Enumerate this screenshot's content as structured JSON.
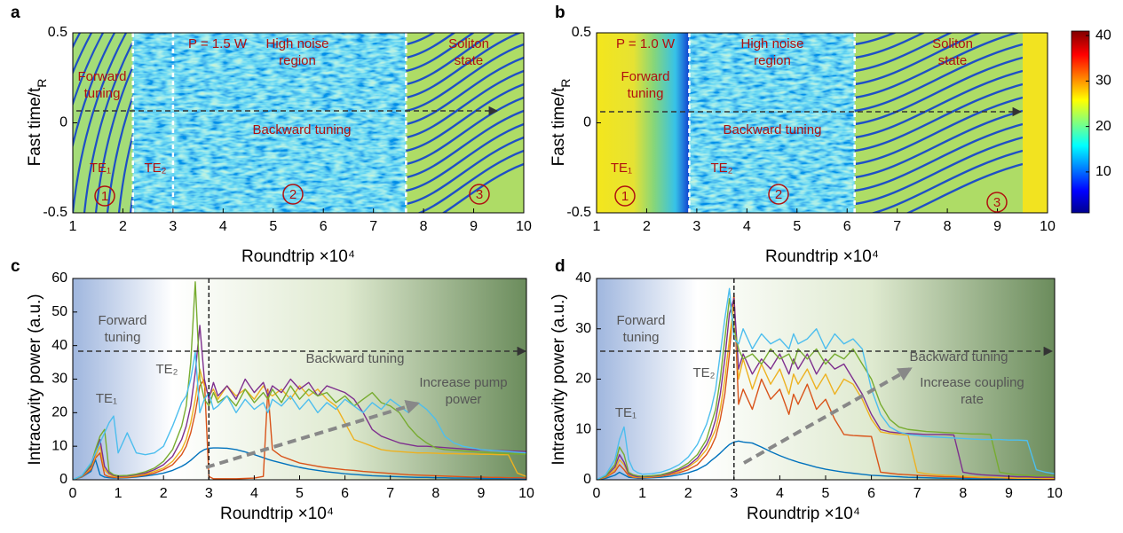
{
  "chart_data": [
    {
      "type": "heatmap",
      "panel": "a",
      "xlabel": "Roundtrip ×10⁴",
      "ylabel": "Fast time/t",
      "ylabel_sub": "R",
      "xlim": [
        1,
        10
      ],
      "xticks": [
        1,
        2,
        3,
        4,
        5,
        6,
        7,
        8,
        9,
        10
      ],
      "ylim": [
        -0.5,
        0.5
      ],
      "yticks": [
        -0.5,
        0,
        0.5
      ],
      "vlines": [
        2.2,
        3,
        7.65
      ],
      "annotations": [
        [
          "P = 1.5 W"
        ],
        [
          "High noise",
          "region"
        ],
        [
          "Forward",
          "tuning"
        ],
        [
          "Backward tuning"
        ],
        [
          "Soliton",
          "state"
        ],
        [
          "TE₁"
        ],
        [
          "TE₂"
        ]
      ],
      "region_labels": [
        "1",
        "2",
        "3"
      ]
    },
    {
      "type": "heatmap",
      "panel": "b",
      "xlabel": "Roundtrip ×10⁴",
      "ylabel": "Fast time/t",
      "ylabel_sub": "R",
      "xlim": [
        1,
        10
      ],
      "xticks": [
        1,
        2,
        3,
        4,
        5,
        6,
        7,
        8,
        9,
        10
      ],
      "ylim": [
        -0.5,
        0.5
      ],
      "yticks": [
        -0.5,
        0,
        0.5
      ],
      "vlines": [
        2.85,
        6.15
      ],
      "annotations": [
        [
          "P = 1.0 W"
        ],
        [
          "High noise",
          "region"
        ],
        [
          "Forward",
          "tuning"
        ],
        [
          "Backward tuning"
        ],
        [
          "Soliton",
          "state"
        ],
        [
          "TE₁"
        ],
        [
          "TE₂"
        ]
      ],
      "region_labels": [
        "1",
        "2",
        "3"
      ],
      "colorbar": {
        "lim": [
          1,
          41
        ],
        "ticks": [
          10,
          20,
          30,
          40
        ]
      }
    },
    {
      "type": "line",
      "panel": "c",
      "xlabel": "Roundtrip ×10⁴",
      "ylabel": "Intracavity power  (a.u.)",
      "xlim": [
        0,
        10
      ],
      "xticks": [
        0,
        1,
        2,
        3,
        4,
        5,
        6,
        7,
        8,
        9,
        10
      ],
      "ylim": [
        0,
        60
      ],
      "yticks": [
        0,
        10,
        20,
        30,
        40,
        50,
        60
      ],
      "vlines": [
        3
      ],
      "annotations": [
        [
          "Forward",
          "tuning"
        ],
        [
          "Backward tuning"
        ],
        [
          "TE₁"
        ],
        [
          "TE₂"
        ],
        [
          "Increase pump",
          "power"
        ]
      ],
      "x": [
        0,
        0.2,
        0.4,
        0.5,
        0.6,
        0.7,
        0.8,
        0.9,
        1,
        1.2,
        1.4,
        1.6,
        1.8,
        2,
        2.2,
        2.4,
        2.5,
        2.6,
        2.7,
        2.8,
        2.9,
        3,
        3.1,
        3.2,
        3.4,
        3.6,
        3.8,
        4,
        4.2,
        4.3,
        4.4,
        4.6,
        4.8,
        5,
        5.2,
        5.4,
        5.6,
        5.8,
        6,
        6.2,
        6.4,
        6.6,
        6.8,
        7,
        7.2,
        7.4,
        7.6,
        7.8,
        8,
        8.2,
        8.4,
        8.6,
        8.8,
        9,
        9.2,
        9.4,
        9.6,
        9.8,
        10
      ],
      "series": [
        {
          "color": "#0072bd",
          "values": [
            0,
            0.8,
            2.5,
            6,
            1.5,
            0.8,
            0.6,
            0.5,
            0.5,
            0.6,
            0.8,
            1.1,
            1.5,
            2,
            2.8,
            4,
            4.8,
            5.8,
            7,
            8.2,
            9,
            9.4,
            9.5,
            9.5,
            9.4,
            9,
            8.3,
            7.5,
            6.6,
            6.1,
            5.7,
            5,
            4.3,
            3.7,
            3.2,
            2.8,
            2.4,
            2.1,
            1.8,
            1.6,
            1.4,
            1.2,
            1.1,
            1,
            0.9,
            0.8,
            0.7,
            0.7,
            0.6,
            0.6,
            0.5,
            0.5,
            0.5,
            0.4,
            0.4,
            0.4,
            0.4,
            0.3,
            0.3
          ]
        },
        {
          "color": "#d95319",
          "values": [
            0,
            0.9,
            3,
            6.5,
            8,
            1.5,
            0.9,
            0.7,
            0.6,
            0.7,
            1,
            1.4,
            2,
            3,
            4.5,
            7.5,
            10,
            14,
            20,
            28,
            30,
            1,
            0.3,
            0.3,
            0.3,
            0.3,
            0.4,
            0.5,
            1,
            27,
            9,
            7,
            6,
            5,
            4.5,
            4,
            3.6,
            3.3,
            3,
            2.8,
            2.5,
            2.3,
            2.1,
            1.9,
            1.7,
            1.5,
            1.4,
            1.3,
            1.2,
            1.1,
            1,
            0.9,
            0.8,
            0.8,
            0.7,
            0.7,
            0.6,
            0.6,
            0.5
          ]
        },
        {
          "color": "#edb120",
          "values": [
            0,
            1,
            3.5,
            7,
            10,
            3,
            1.5,
            1,
            0.8,
            0.9,
            1.2,
            1.7,
            2.5,
            3.5,
            5.5,
            9,
            12,
            17,
            24,
            33,
            28,
            25,
            27,
            24,
            28,
            25,
            27,
            24,
            28,
            26,
            25,
            27,
            24,
            28,
            25,
            27,
            24,
            22,
            17,
            12,
            11,
            10,
            9,
            8.6,
            8.4,
            8.2,
            8,
            8,
            7.9,
            7.8,
            7.8,
            7.7,
            7.7,
            7.6,
            7.6,
            7.5,
            7.5,
            2,
            1
          ]
        },
        {
          "color": "#7e2f8e",
          "values": [
            0,
            1.1,
            4,
            8,
            12,
            4,
            2,
            1.3,
            1,
            1.1,
            1.5,
            2,
            3,
            4.5,
            7,
            12,
            16,
            22,
            32,
            46,
            30,
            24,
            29,
            25,
            28,
            24,
            30,
            26,
            29,
            25,
            28,
            26,
            30,
            27,
            29,
            25,
            28,
            27,
            26,
            24,
            20,
            15,
            13,
            12,
            11,
            10.5,
            10,
            10,
            9.8,
            9.6,
            9.4,
            9.2,
            9,
            8.9,
            8.8,
            8.7,
            8.6,
            8.5,
            8.4
          ]
        },
        {
          "color": "#77ac30",
          "values": [
            0,
            1.2,
            4.5,
            9,
            13,
            15,
            2.5,
            1.5,
            1.2,
            1.3,
            1.7,
            2.4,
            3.5,
            5.5,
            9,
            16,
            22,
            35,
            59,
            30,
            24,
            22,
            26,
            23,
            25,
            22,
            27,
            23,
            26,
            24,
            27,
            23,
            28,
            24,
            27,
            25,
            26,
            23,
            25,
            22,
            24,
            26,
            23,
            22,
            20,
            16,
            13,
            11,
            9.5,
            9,
            8.8,
            8.6,
            8.4,
            8.2,
            8,
            7.9,
            7.8,
            7.7,
            7.6
          ]
        },
        {
          "color": "#4dbeee",
          "values": [
            0,
            1.3,
            5,
            8,
            11,
            14,
            17,
            19,
            8,
            14,
            8,
            7.5,
            8,
            10,
            16,
            23,
            25,
            30,
            38,
            20,
            24,
            26,
            21,
            22,
            25,
            20,
            24,
            21,
            23,
            20,
            24,
            22,
            25,
            21,
            24,
            20,
            23,
            21,
            24,
            22,
            20,
            23,
            21,
            24,
            22,
            20,
            23,
            21,
            18,
            13,
            11,
            10,
            9.5,
            9,
            8.8,
            8.6,
            8.4,
            8.2,
            8
          ]
        }
      ]
    },
    {
      "type": "line",
      "panel": "d",
      "xlabel": "Roundtrip ×10⁴",
      "ylabel": "Intracavity power  (a.u.)",
      "xlim": [
        0,
        10
      ],
      "xticks": [
        0,
        1,
        2,
        3,
        4,
        5,
        6,
        7,
        8,
        9,
        10
      ],
      "ylim": [
        0,
        40
      ],
      "yticks": [
        0,
        10,
        20,
        30,
        40
      ],
      "vlines": [
        3
      ],
      "annotations": [
        [
          "Forward",
          "tuning"
        ],
        [
          "Backward tuning"
        ],
        [
          "TE₁"
        ],
        [
          "TE₂"
        ],
        [
          "Increase coupling",
          "rate"
        ]
      ],
      "x": [
        0,
        0.2,
        0.4,
        0.5,
        0.6,
        0.7,
        0.8,
        0.9,
        1,
        1.2,
        1.4,
        1.6,
        1.8,
        2,
        2.2,
        2.4,
        2.5,
        2.6,
        2.7,
        2.8,
        2.9,
        3,
        3.1,
        3.2,
        3.4,
        3.6,
        3.8,
        4,
        4.2,
        4.3,
        4.4,
        4.6,
        4.8,
        5,
        5.2,
        5.4,
        5.6,
        5.8,
        6,
        6.2,
        6.4,
        6.6,
        6.8,
        7,
        7.2,
        7.4,
        7.6,
        7.8,
        8,
        8.2,
        8.4,
        8.6,
        8.8,
        9,
        9.2,
        9.4,
        9.6,
        9.8,
        10
      ],
      "series": [
        {
          "color": "#0072bd",
          "values": [
            0,
            0.3,
            0.9,
            1.5,
            1,
            0.5,
            0.4,
            0.3,
            0.3,
            0.4,
            0.5,
            0.7,
            1,
            1.4,
            2,
            3,
            3.8,
            4.5,
            5.3,
            6.2,
            7,
            7.5,
            7.7,
            7.5,
            7.3,
            6.5,
            5.6,
            4.8,
            4.1,
            3.8,
            3.5,
            3,
            2.5,
            2.1,
            1.8,
            1.5,
            1.3,
            1.1,
            0.9,
            0.8,
            0.7,
            0.6,
            0.5,
            0.45,
            0.4,
            0.35,
            0.3,
            0.3,
            0.25,
            0.2,
            0.2,
            0.2,
            0.15,
            0.15,
            0.1,
            0.1,
            0.1,
            0.1,
            0.1
          ]
        },
        {
          "color": "#d95319",
          "values": [
            0,
            0.5,
            1.6,
            3,
            2,
            0.8,
            0.5,
            0.4,
            0.4,
            0.5,
            0.7,
            1,
            1.4,
            2,
            3,
            5,
            6.5,
            8.5,
            12,
            17,
            25,
            37,
            15,
            18,
            14,
            20,
            16,
            18,
            13,
            17,
            15,
            19,
            14,
            16,
            12,
            9,
            8.8,
            8.7,
            8.6,
            1.5,
            1.3,
            1.1,
            1,
            0.9,
            0.8,
            0.7,
            0.6,
            0.6,
            0.5,
            0.5,
            0.4,
            0.4,
            0.4,
            0.3,
            0.3,
            0.3,
            0.3,
            0.2,
            0.2
          ]
        },
        {
          "color": "#edb120",
          "values": [
            0,
            0.6,
            2,
            4,
            3,
            1,
            0.6,
            0.5,
            0.5,
            0.6,
            0.8,
            1.2,
            1.7,
            2.5,
            3.8,
            6,
            8,
            10,
            14,
            20,
            28,
            35,
            20,
            24,
            18,
            23,
            19,
            22,
            17,
            21,
            19,
            22,
            18,
            21,
            17,
            20,
            19,
            16,
            12,
            9.5,
            9.2,
            9,
            8.9,
            1.5,
            1.2,
            1,
            0.9,
            0.8,
            0.7,
            0.6,
            0.5,
            0.5,
            0.4,
            0.4,
            0.3,
            0.3,
            0.3,
            0.3,
            0.3
          ]
        },
        {
          "color": "#7e2f8e",
          "values": [
            0,
            0.7,
            2.5,
            5,
            3.5,
            1.2,
            0.8,
            0.6,
            0.6,
            0.7,
            0.9,
            1.3,
            1.9,
            2.8,
            4.3,
            7,
            9,
            12,
            17,
            24,
            33,
            36,
            22,
            25,
            21,
            24,
            22,
            25,
            21,
            24,
            22,
            25,
            21,
            24,
            22,
            23,
            20,
            17,
            13,
            10,
            9.5,
            9.3,
            9.2,
            9.1,
            9,
            9,
            9,
            8.9,
            1.5,
            1.2,
            1,
            0.9,
            0.8,
            0.7,
            0.6,
            0.6,
            0.5,
            0.5,
            0.5
          ]
        },
        {
          "color": "#77ac30",
          "values": [
            0,
            0.8,
            3,
            6.5,
            5,
            1.5,
            1,
            0.8,
            0.7,
            0.8,
            1,
            1.5,
            2.2,
            3.3,
            5,
            8,
            11,
            14,
            20,
            28,
            36,
            30,
            26,
            24,
            25,
            23,
            26,
            24,
            25,
            23,
            26,
            24,
            26,
            23,
            25,
            24,
            26,
            23,
            20,
            15,
            12,
            10.5,
            10,
            9.8,
            9.6,
            9.5,
            9.4,
            9.3,
            9.2,
            9.1,
            9.1,
            9,
            1.5,
            1.2,
            1,
            0.9,
            0.8,
            0.8,
            0.7
          ]
        },
        {
          "color": "#4dbeee",
          "values": [
            0,
            1,
            4,
            8,
            10.5,
            4,
            2,
            1.4,
            1.1,
            1.2,
            1.5,
            2.1,
            3,
            4.5,
            7,
            11,
            14,
            18,
            25,
            32,
            38,
            28,
            27,
            30,
            26,
            29,
            27,
            28,
            26,
            29,
            27,
            28,
            30,
            26,
            29,
            27,
            28,
            26,
            18,
            13,
            10.5,
            9.5,
            9,
            8.8,
            8.6,
            8.5,
            8.4,
            8.3,
            8.2,
            8.1,
            8,
            8,
            8,
            7.9,
            7.9,
            7.8,
            2,
            1.5,
            1.2
          ]
        }
      ]
    }
  ]
}
